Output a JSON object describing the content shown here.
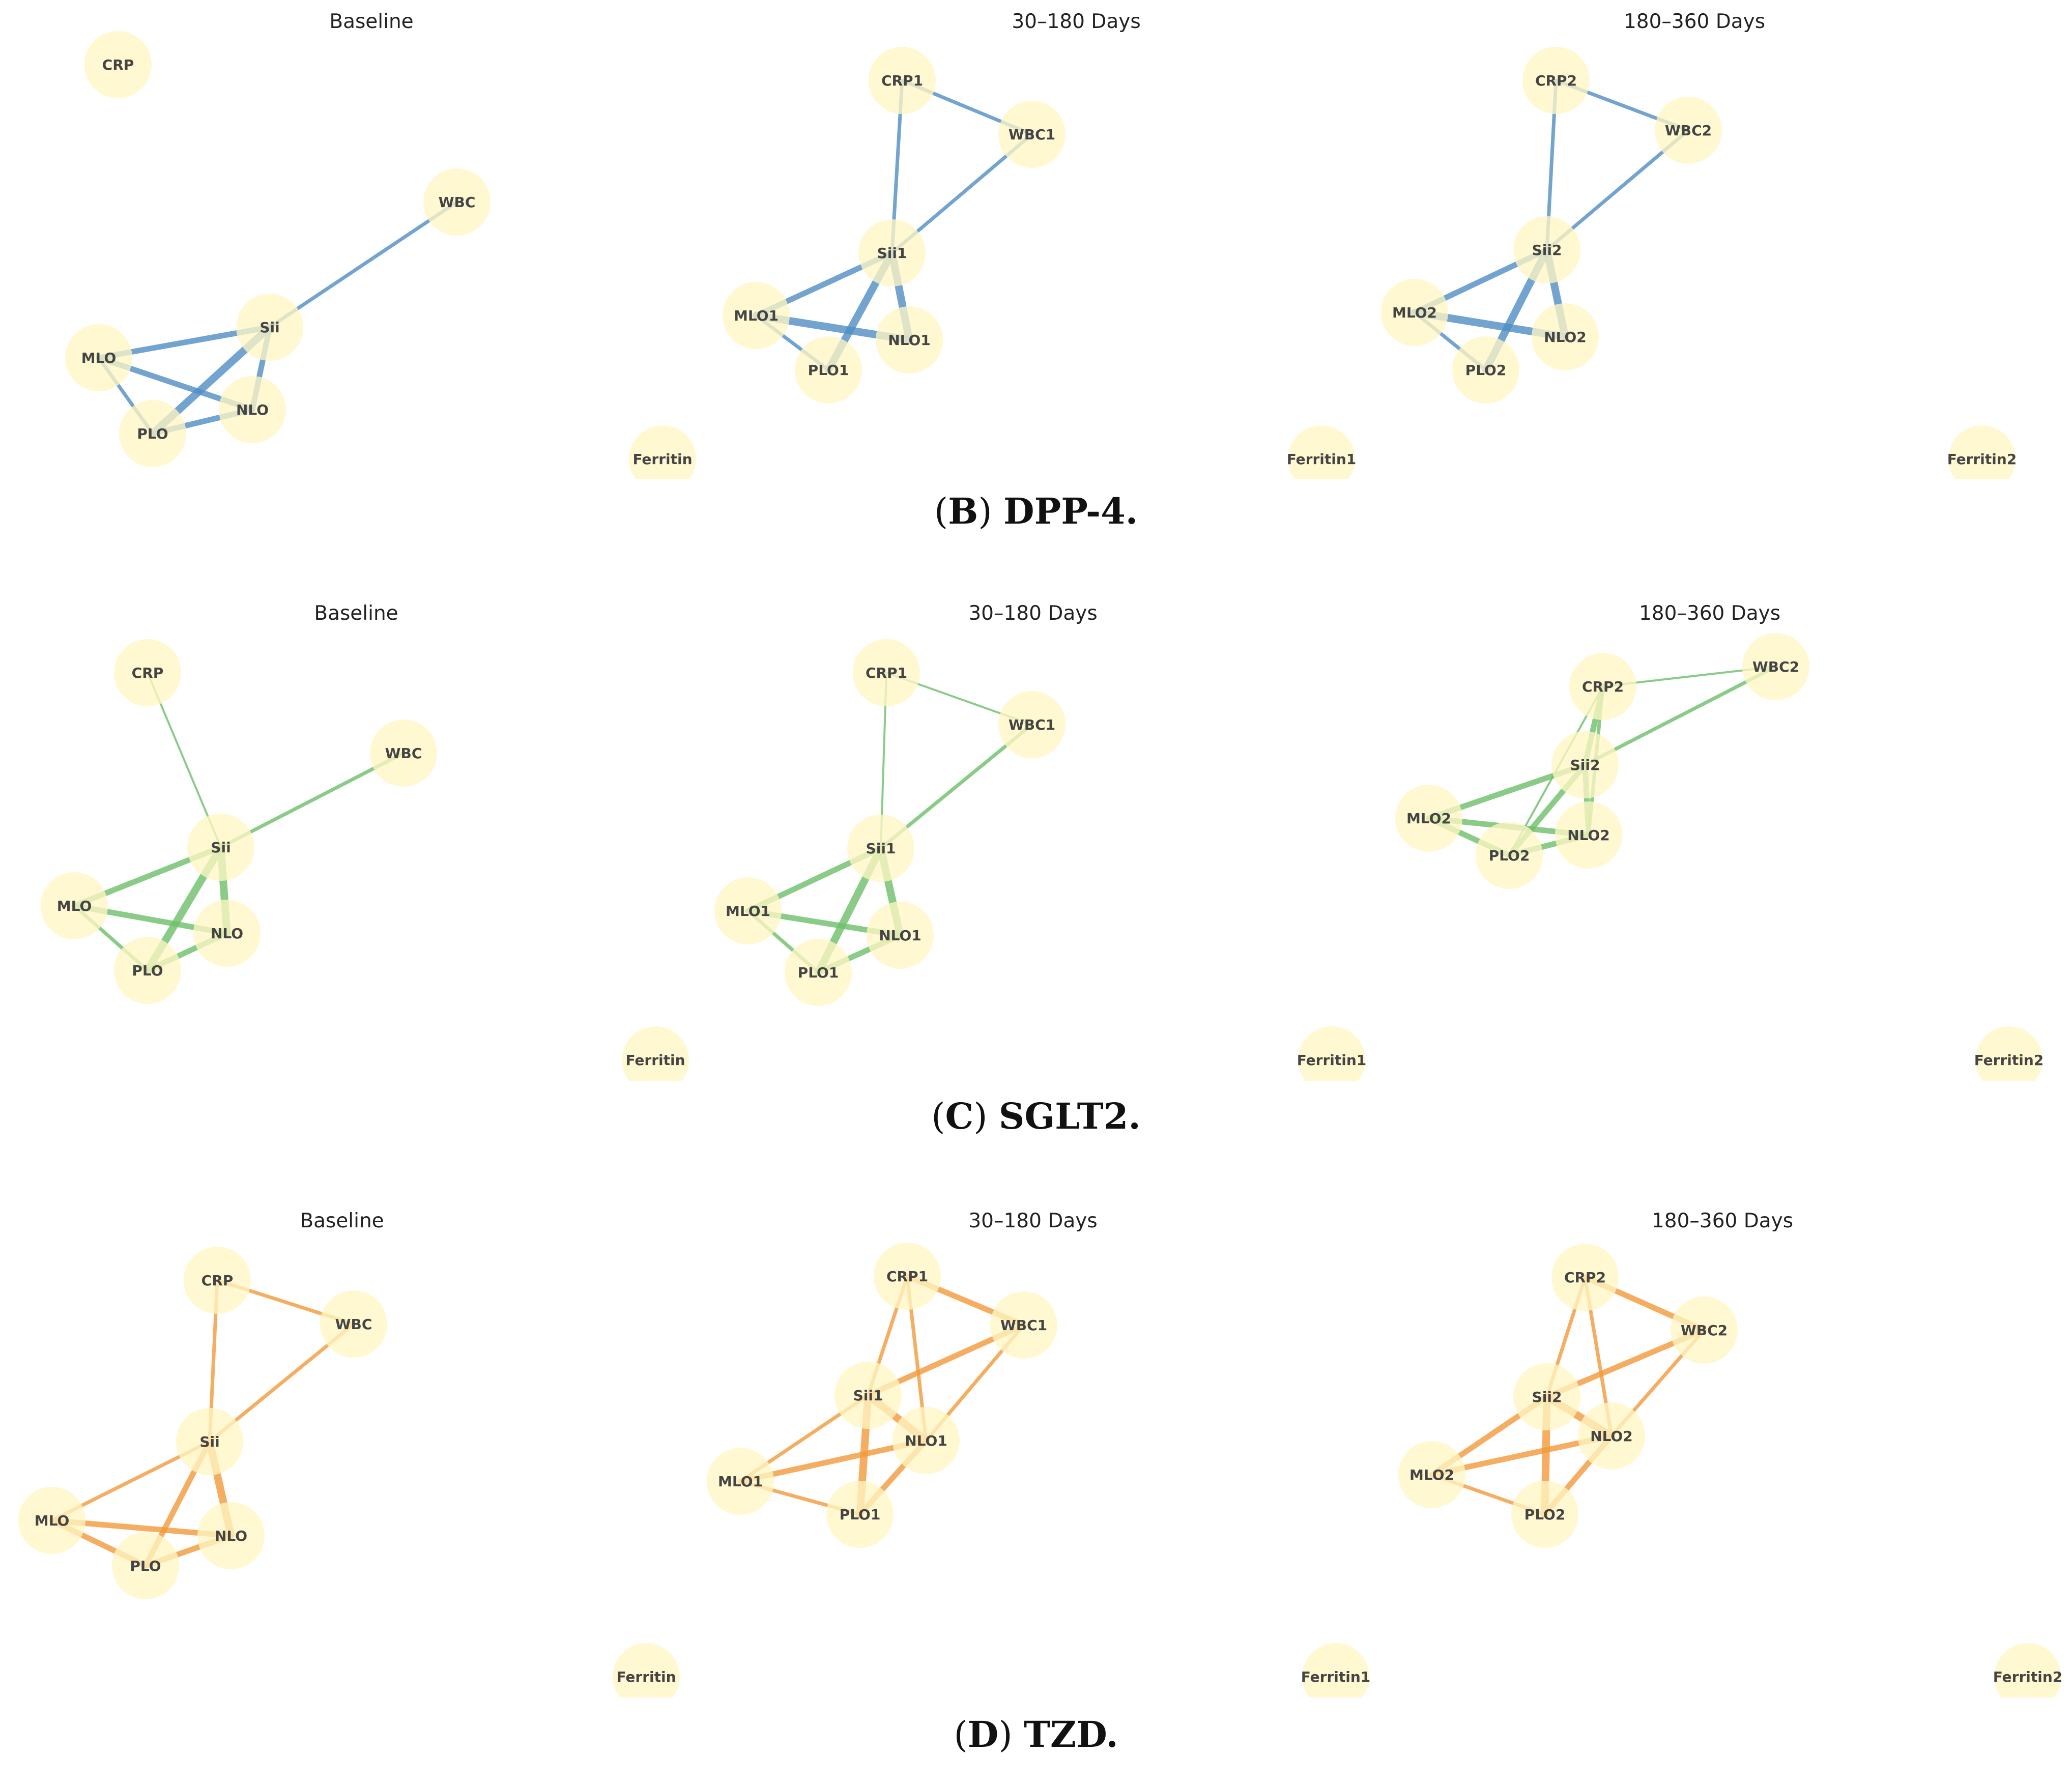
{
  "figure": {
    "panel_groups": [
      {
        "id": "B",
        "letter": "B",
        "name": "DPP-4.",
        "edge_color": "#4f8ec4",
        "node_color": "#fff6c4",
        "panels": [
          {
            "title": "Baseline",
            "nodes": [
              {
                "id": "CRP",
                "label": "CRP"
              },
              {
                "id": "WBC",
                "label": "WBC"
              },
              {
                "id": "Sii",
                "label": "Sii"
              },
              {
                "id": "MLO",
                "label": "MLO"
              },
              {
                "id": "PLO",
                "label": "PLO"
              },
              {
                "id": "NLO",
                "label": "NLO"
              },
              {
                "id": "Ferritin",
                "label": "Ferritin"
              }
            ],
            "edges": [
              {
                "from": "Sii",
                "to": "WBC",
                "weight": 2
              },
              {
                "from": "MLO",
                "to": "Sii",
                "weight": 3
              },
              {
                "from": "MLO",
                "to": "PLO",
                "weight": 2
              },
              {
                "from": "MLO",
                "to": "NLO",
                "weight": 3
              },
              {
                "from": "PLO",
                "to": "Sii",
                "weight": 4
              },
              {
                "from": "PLO",
                "to": "NLO",
                "weight": 3
              },
              {
                "from": "NLO",
                "to": "Sii",
                "weight": 3
              }
            ]
          },
          {
            "title": "30–180 Days",
            "nodes": [
              {
                "id": "CRP1",
                "label": "CRP1"
              },
              {
                "id": "WBC1",
                "label": "WBC1"
              },
              {
                "id": "Sii1",
                "label": "Sii1"
              },
              {
                "id": "MLO1",
                "label": "MLO1"
              },
              {
                "id": "PLO1",
                "label": "PLO1"
              },
              {
                "id": "NLO1",
                "label": "NLO1"
              },
              {
                "id": "Ferritin1",
                "label": "Ferritin1"
              }
            ],
            "edges": [
              {
                "from": "CRP1",
                "to": "WBC1",
                "weight": 2
              },
              {
                "from": "CRP1",
                "to": "Sii1",
                "weight": 2
              },
              {
                "from": "WBC1",
                "to": "Sii1",
                "weight": 2
              },
              {
                "from": "MLO1",
                "to": "Sii1",
                "weight": 3
              },
              {
                "from": "MLO1",
                "to": "PLO1",
                "weight": 2
              },
              {
                "from": "MLO1",
                "to": "NLO1",
                "weight": 4
              },
              {
                "from": "PLO1",
                "to": "Sii1",
                "weight": 4
              },
              {
                "from": "NLO1",
                "to": "Sii1",
                "weight": 4
              }
            ]
          },
          {
            "title": "180–360 Days",
            "nodes": [
              {
                "id": "CRP2",
                "label": "CRP2"
              },
              {
                "id": "WBC2",
                "label": "WBC2"
              },
              {
                "id": "Sii2",
                "label": "Sii2"
              },
              {
                "id": "MLO2",
                "label": "MLO2"
              },
              {
                "id": "PLO2",
                "label": "PLO2"
              },
              {
                "id": "NLO2",
                "label": "NLO2"
              },
              {
                "id": "Ferritin2",
                "label": "Ferritin2"
              }
            ],
            "edges": [
              {
                "from": "CRP2",
                "to": "WBC2",
                "weight": 2
              },
              {
                "from": "CRP2",
                "to": "Sii2",
                "weight": 2
              },
              {
                "from": "WBC2",
                "to": "Sii2",
                "weight": 2
              },
              {
                "from": "MLO2",
                "to": "Sii2",
                "weight": 3
              },
              {
                "from": "MLO2",
                "to": "PLO2",
                "weight": 2
              },
              {
                "from": "MLO2",
                "to": "NLO2",
                "weight": 4
              },
              {
                "from": "PLO2",
                "to": "Sii2",
                "weight": 4
              },
              {
                "from": "NLO2",
                "to": "Sii2",
                "weight": 4
              }
            ]
          }
        ]
      },
      {
        "id": "C",
        "letter": "C",
        "name": "SGLT2.",
        "edge_color": "#6ec06a",
        "node_color": "#fff6c4",
        "panels": [
          {
            "title": "Baseline",
            "nodes": [
              {
                "id": "CRP",
                "label": "CRP"
              },
              {
                "id": "WBC",
                "label": "WBC"
              },
              {
                "id": "Sii",
                "label": "Sii"
              },
              {
                "id": "MLO",
                "label": "MLO"
              },
              {
                "id": "PLO",
                "label": "PLO"
              },
              {
                "id": "NLO",
                "label": "NLO"
              },
              {
                "id": "Ferritin",
                "label": "Ferritin"
              }
            ],
            "edges": [
              {
                "from": "CRP",
                "to": "Sii",
                "weight": 1
              },
              {
                "from": "WBC",
                "to": "Sii",
                "weight": 2
              },
              {
                "from": "MLO",
                "to": "Sii",
                "weight": 3
              },
              {
                "from": "MLO",
                "to": "PLO",
                "weight": 2
              },
              {
                "from": "MLO",
                "to": "NLO",
                "weight": 3
              },
              {
                "from": "PLO",
                "to": "Sii",
                "weight": 4
              },
              {
                "from": "PLO",
                "to": "NLO",
                "weight": 3
              },
              {
                "from": "NLO",
                "to": "Sii",
                "weight": 4
              }
            ]
          },
          {
            "title": "30–180 Days",
            "nodes": [
              {
                "id": "CRP1",
                "label": "CRP1"
              },
              {
                "id": "WBC1",
                "label": "WBC1"
              },
              {
                "id": "Sii1",
                "label": "Sii1"
              },
              {
                "id": "MLO1",
                "label": "MLO1"
              },
              {
                "id": "PLO1",
                "label": "PLO1"
              },
              {
                "id": "NLO1",
                "label": "NLO1"
              },
              {
                "id": "Ferritin1",
                "label": "Ferritin1"
              }
            ],
            "edges": [
              {
                "from": "CRP1",
                "to": "WBC1",
                "weight": 1
              },
              {
                "from": "CRP1",
                "to": "Sii1",
                "weight": 1
              },
              {
                "from": "WBC1",
                "to": "Sii1",
                "weight": 2
              },
              {
                "from": "MLO1",
                "to": "Sii1",
                "weight": 3
              },
              {
                "from": "MLO1",
                "to": "PLO1",
                "weight": 2
              },
              {
                "from": "MLO1",
                "to": "NLO1",
                "weight": 3
              },
              {
                "from": "PLO1",
                "to": "Sii1",
                "weight": 4
              },
              {
                "from": "PLO1",
                "to": "NLO1",
                "weight": 3
              },
              {
                "from": "NLO1",
                "to": "Sii1",
                "weight": 4
              }
            ]
          },
          {
            "title": "180–360 Days",
            "nodes": [
              {
                "id": "CRP2",
                "label": "CRP2"
              },
              {
                "id": "WBC2",
                "label": "WBC2"
              },
              {
                "id": "Sii2",
                "label": "Sii2"
              },
              {
                "id": "MLO2",
                "label": "MLO2"
              },
              {
                "id": "PLO2",
                "label": "PLO2"
              },
              {
                "id": "NLO2",
                "label": "NLO2"
              },
              {
                "id": "Ferritin2",
                "label": "Ferritin2"
              }
            ],
            "edges": [
              {
                "from": "CRP2",
                "to": "WBC2",
                "weight": 1
              },
              {
                "from": "CRP2",
                "to": "Sii2",
                "weight": 3
              },
              {
                "from": "CRP2",
                "to": "PLO2",
                "weight": 1
              },
              {
                "from": "CRP2",
                "to": "NLO2",
                "weight": 2
              },
              {
                "from": "WBC2",
                "to": "Sii2",
                "weight": 2
              },
              {
                "from": "MLO2",
                "to": "Sii2",
                "weight": 3
              },
              {
                "from": "MLO2",
                "to": "PLO2",
                "weight": 3
              },
              {
                "from": "MLO2",
                "to": "NLO2",
                "weight": 3
              },
              {
                "from": "PLO2",
                "to": "Sii2",
                "weight": 3
              },
              {
                "from": "PLO2",
                "to": "NLO2",
                "weight": 3
              },
              {
                "from": "NLO2",
                "to": "Sii2",
                "weight": 3
              }
            ]
          }
        ]
      },
      {
        "id": "D",
        "letter": "D",
        "name": "TZD.",
        "edge_color": "#f39a3a",
        "node_color": "#fff6c4",
        "panels": [
          {
            "title": "Baseline",
            "nodes": [
              {
                "id": "CRP",
                "label": "CRP"
              },
              {
                "id": "WBC",
                "label": "WBC"
              },
              {
                "id": "Sii",
                "label": "Sii"
              },
              {
                "id": "MLO",
                "label": "MLO"
              },
              {
                "id": "PLO",
                "label": "PLO"
              },
              {
                "id": "NLO",
                "label": "NLO"
              },
              {
                "id": "Ferritin",
                "label": "Ferritin"
              }
            ],
            "edges": [
              {
                "from": "CRP",
                "to": "WBC",
                "weight": 2
              },
              {
                "from": "CRP",
                "to": "Sii",
                "weight": 2
              },
              {
                "from": "WBC",
                "to": "Sii",
                "weight": 2
              },
              {
                "from": "MLO",
                "to": "Sii",
                "weight": 2
              },
              {
                "from": "MLO",
                "to": "PLO",
                "weight": 3
              },
              {
                "from": "MLO",
                "to": "NLO",
                "weight": 3
              },
              {
                "from": "PLO",
                "to": "Sii",
                "weight": 3
              },
              {
                "from": "PLO",
                "to": "NLO",
                "weight": 3
              },
              {
                "from": "NLO",
                "to": "Sii",
                "weight": 4
              }
            ]
          },
          {
            "title": "30–180 Days",
            "nodes": [
              {
                "id": "CRP1",
                "label": "CRP1"
              },
              {
                "id": "WBC1",
                "label": "WBC1"
              },
              {
                "id": "Sii1",
                "label": "Sii1"
              },
              {
                "id": "MLO1",
                "label": "MLO1"
              },
              {
                "id": "PLO1",
                "label": "PLO1"
              },
              {
                "id": "NLO1",
                "label": "NLO1"
              },
              {
                "id": "Ferritin1",
                "label": "Ferritin1"
              }
            ],
            "edges": [
              {
                "from": "CRP1",
                "to": "WBC1",
                "weight": 3
              },
              {
                "from": "CRP1",
                "to": "Sii1",
                "weight": 2
              },
              {
                "from": "CRP1",
                "to": "NLO1",
                "weight": 2
              },
              {
                "from": "WBC1",
                "to": "Sii1",
                "weight": 3
              },
              {
                "from": "WBC1",
                "to": "NLO1",
                "weight": 2
              },
              {
                "from": "MLO1",
                "to": "Sii1",
                "weight": 2
              },
              {
                "from": "MLO1",
                "to": "PLO1",
                "weight": 2
              },
              {
                "from": "MLO1",
                "to": "NLO1",
                "weight": 3
              },
              {
                "from": "PLO1",
                "to": "Sii1",
                "weight": 4
              },
              {
                "from": "PLO1",
                "to": "NLO1",
                "weight": 3
              },
              {
                "from": "NLO1",
                "to": "Sii1",
                "weight": 4
              }
            ]
          },
          {
            "title": "180–360 Days",
            "nodes": [
              {
                "id": "CRP2",
                "label": "CRP2"
              },
              {
                "id": "WBC2",
                "label": "WBC2"
              },
              {
                "id": "Sii2",
                "label": "Sii2"
              },
              {
                "id": "MLO2",
                "label": "MLO2"
              },
              {
                "id": "PLO2",
                "label": "PLO2"
              },
              {
                "id": "NLO2",
                "label": "NLO2"
              },
              {
                "id": "Ferritin2",
                "label": "Ferritin2"
              }
            ],
            "edges": [
              {
                "from": "CRP2",
                "to": "WBC2",
                "weight": 3
              },
              {
                "from": "CRP2",
                "to": "Sii2",
                "weight": 2
              },
              {
                "from": "CRP2",
                "to": "NLO2",
                "weight": 2
              },
              {
                "from": "WBC2",
                "to": "Sii2",
                "weight": 3
              },
              {
                "from": "WBC2",
                "to": "NLO2",
                "weight": 2
              },
              {
                "from": "MLO2",
                "to": "Sii2",
                "weight": 3
              },
              {
                "from": "MLO2",
                "to": "PLO2",
                "weight": 2
              },
              {
                "from": "MLO2",
                "to": "NLO2",
                "weight": 3
              },
              {
                "from": "PLO2",
                "to": "Sii2",
                "weight": 4
              },
              {
                "from": "PLO2",
                "to": "NLO2",
                "weight": 3
              },
              {
                "from": "NLO2",
                "to": "Sii2",
                "weight": 4
              }
            ]
          }
        ]
      }
    ]
  }
}
